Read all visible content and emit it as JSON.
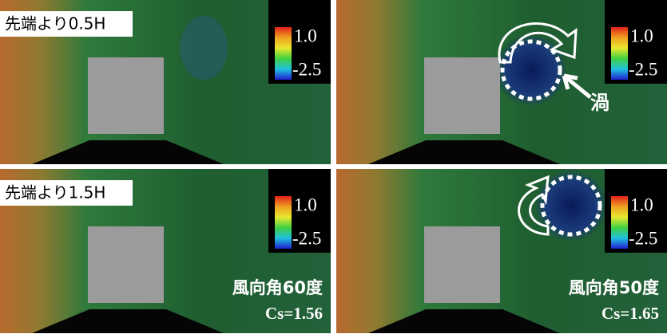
{
  "panels": [
    {
      "label": "先端より0.5H",
      "colorbar": {
        "max": "1.0",
        "min": "-2.5"
      }
    },
    {
      "vortex_label": "渦",
      "colorbar": {
        "max": "1.0",
        "min": "-2.5"
      }
    },
    {
      "label": "先端より1.5H",
      "colorbar": {
        "max": "1.0",
        "min": "-2.5"
      },
      "wind_angle": "風向角60度",
      "cs": "Cs=1.56"
    },
    {
      "colorbar": {
        "max": "1.0",
        "min": "-2.5"
      },
      "wind_angle": "風向角50度",
      "cs": "Cs=1.65"
    }
  ]
}
